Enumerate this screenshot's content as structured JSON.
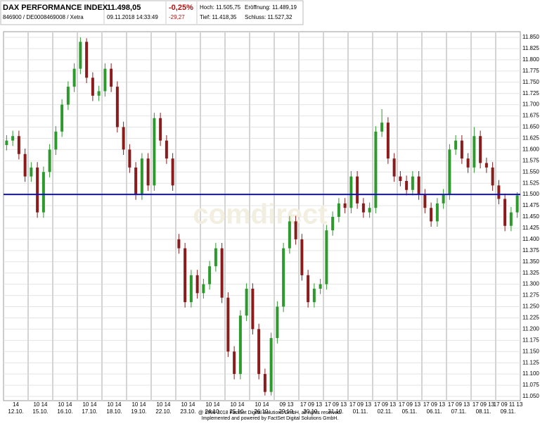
{
  "header": {
    "title": "DAX PERFORMANCE INDEX",
    "price": "11.498,05",
    "change_pct": "-0,25%",
    "high": "Hoch: 11.505,75",
    "open": "Eröffnung: 11.489,19",
    "id": "846900 / DE0008469008 / Xetra",
    "timestamp": "09.11.2018 14:33:49",
    "change_abs": "-29,27",
    "low": "Tief: 11.418,35",
    "close": "Schluss: 11.527,32"
  },
  "chart_data": {
    "type": "candlestick",
    "watermark": "comdirect",
    "up_color": "#2e9a2e",
    "down_color": "#8a1c1c",
    "reference_line": 11500,
    "reference_color": "#1010c0",
    "grid": true,
    "ylim": [
      11050,
      11850
    ],
    "yticks": [
      {
        "value": 11050,
        "label": "11.050"
      },
      {
        "value": 11075,
        "label": "11.075"
      },
      {
        "value": 11100,
        "label": "11.100"
      },
      {
        "value": 11125,
        "label": "11.125"
      },
      {
        "value": 11150,
        "label": "11.150"
      },
      {
        "value": 11175,
        "label": "11.175"
      },
      {
        "value": 11200,
        "label": "11.200"
      },
      {
        "value": 11225,
        "label": "11.225"
      },
      {
        "value": 11250,
        "label": "11.250"
      },
      {
        "value": 11275,
        "label": "11.275"
      },
      {
        "value": 11300,
        "label": "11.300"
      },
      {
        "value": 11325,
        "label": "11.325"
      },
      {
        "value": 11350,
        "label": "11.350"
      },
      {
        "value": 11375,
        "label": "11.375"
      },
      {
        "value": 11400,
        "label": "11.400"
      },
      {
        "value": 11425,
        "label": "11.425"
      },
      {
        "value": 11450,
        "label": "11.450"
      },
      {
        "value": 11475,
        "label": "11.475"
      },
      {
        "value": 11500,
        "label": "11.500"
      },
      {
        "value": 11525,
        "label": "11.525"
      },
      {
        "value": 11550,
        "label": "11.550"
      },
      {
        "value": 11575,
        "label": "11.575"
      },
      {
        "value": 11600,
        "label": "11.600"
      },
      {
        "value": 11625,
        "label": "11.625"
      },
      {
        "value": 11650,
        "label": "11.650"
      },
      {
        "value": 11675,
        "label": "11.675"
      },
      {
        "value": 11700,
        "label": "11.700"
      },
      {
        "value": 11725,
        "label": "11.725"
      },
      {
        "value": 11750,
        "label": "11.750"
      },
      {
        "value": 11775,
        "label": "11.775"
      },
      {
        "value": 11800,
        "label": "11.800"
      },
      {
        "value": 11825,
        "label": "11.825"
      },
      {
        "value": 11850,
        "label": "11.850"
      }
    ],
    "days": [
      "12.10.",
      "15.10.",
      "16.10.",
      "17.10.",
      "18.10.",
      "19.10.",
      "22.10.",
      "23.10.",
      "24.10.",
      "25.10.",
      "26.10.",
      "29.10.",
      "30.10.",
      "31.10.",
      "01.11.",
      "02.11.",
      "05.11.",
      "06.11.",
      "07.11.",
      "08.11.",
      "09.11."
    ],
    "hour_labels": [
      "14",
      "10 14",
      "10 14",
      "10 14",
      "10 14",
      "10 14",
      "10 14",
      "10 14",
      "10 14",
      "10 14",
      "10 14",
      "09 13",
      "17 09 13",
      "17 09 13",
      "17 09 13",
      "17 09 13",
      "17 09 13",
      "17 09 13",
      "17 09 13",
      "17 09 13",
      "17 09 11 13"
    ],
    "candles": [
      [
        11610,
        11632,
        11598,
        11620
      ],
      [
        11620,
        11642,
        11608,
        11630
      ],
      [
        11630,
        11642,
        11578,
        11590
      ],
      [
        11590,
        11602,
        11528,
        11540
      ],
      [
        11540,
        11572,
        11528,
        11560
      ],
      [
        11560,
        11572,
        11448,
        11460
      ],
      [
        11460,
        11562,
        11448,
        11550
      ],
      [
        11550,
        11612,
        11538,
        11600
      ],
      [
        11600,
        11652,
        11588,
        11640
      ],
      [
        11640,
        11712,
        11628,
        11700
      ],
      [
        11700,
        11752,
        11688,
        11740
      ],
      [
        11740,
        11792,
        11728,
        11780
      ],
      [
        11780,
        11850,
        11768,
        11840
      ],
      [
        11840,
        11848,
        11748,
        11760
      ],
      [
        11760,
        11772,
        11708,
        11720
      ],
      [
        11720,
        11742,
        11708,
        11730
      ],
      [
        11730,
        11792,
        11718,
        11780
      ],
      [
        11780,
        11792,
        11728,
        11740
      ],
      [
        11740,
        11752,
        11638,
        11650
      ],
      [
        11650,
        11662,
        11588,
        11600
      ],
      [
        11600,
        11612,
        11548,
        11560
      ],
      [
        11560,
        11572,
        11488,
        11500
      ],
      [
        11500,
        11592,
        11488,
        11580
      ],
      [
        11580,
        11592,
        11508,
        11520
      ],
      [
        11520,
        11682,
        11508,
        11670
      ],
      [
        11670,
        11682,
        11608,
        11620
      ],
      [
        11620,
        11632,
        11568,
        11580
      ],
      [
        11580,
        11592,
        11508,
        11520
      ],
      [
        11400,
        11412,
        11368,
        11380
      ],
      [
        11380,
        11392,
        11248,
        11260
      ],
      [
        11260,
        11332,
        11248,
        11320
      ],
      [
        11320,
        11332,
        11268,
        11280
      ],
      [
        11280,
        11312,
        11268,
        11300
      ],
      [
        11300,
        11352,
        11288,
        11340
      ],
      [
        11340,
        11392,
        11328,
        11380
      ],
      [
        11380,
        11392,
        11258,
        11270
      ],
      [
        11270,
        11282,
        11138,
        11150
      ],
      [
        11150,
        11162,
        11088,
        11100
      ],
      [
        11100,
        11242,
        11088,
        11230
      ],
      [
        11230,
        11302,
        11218,
        11290
      ],
      [
        11290,
        11302,
        11188,
        11200
      ],
      [
        11200,
        11212,
        11088,
        11100
      ],
      [
        11100,
        11112,
        11052,
        11060
      ],
      [
        11060,
        11192,
        11052,
        11180
      ],
      [
        11180,
        11262,
        11168,
        11250
      ],
      [
        11250,
        11392,
        11238,
        11380
      ],
      [
        11380,
        11452,
        11368,
        11440
      ],
      [
        11440,
        11452,
        11388,
        11400
      ],
      [
        11400,
        11412,
        11308,
        11320
      ],
      [
        11320,
        11332,
        11248,
        11260
      ],
      [
        11260,
        11302,
        11248,
        11290
      ],
      [
        11290,
        11312,
        11278,
        11300
      ],
      [
        11300,
        11432,
        11288,
        11420
      ],
      [
        11420,
        11462,
        11408,
        11450
      ],
      [
        11450,
        11492,
        11438,
        11480
      ],
      [
        11480,
        11492,
        11458,
        11470
      ],
      [
        11470,
        11552,
        11458,
        11540
      ],
      [
        11540,
        11552,
        11468,
        11480
      ],
      [
        11480,
        11492,
        11448,
        11460
      ],
      [
        11460,
        11482,
        11448,
        11470
      ],
      [
        11470,
        11652,
        11458,
        11640
      ],
      [
        11640,
        11690,
        11628,
        11660
      ],
      [
        11660,
        11672,
        11568,
        11580
      ],
      [
        11580,
        11592,
        11528,
        11540
      ],
      [
        11540,
        11552,
        11518,
        11530
      ],
      [
        11530,
        11542,
        11498,
        11510
      ],
      [
        11510,
        11552,
        11498,
        11540
      ],
      [
        11540,
        11552,
        11488,
        11500
      ],
      [
        11500,
        11512,
        11458,
        11470
      ],
      [
        11470,
        11482,
        11428,
        11440
      ],
      [
        11440,
        11492,
        11428,
        11480
      ],
      [
        11480,
        11512,
        11468,
        11500
      ],
      [
        11500,
        11612,
        11488,
        11600
      ],
      [
        11600,
        11632,
        11588,
        11620
      ],
      [
        11620,
        11632,
        11568,
        11580
      ],
      [
        11580,
        11592,
        11548,
        11560
      ],
      [
        11560,
        11650,
        11548,
        11630
      ],
      [
        11630,
        11642,
        11558,
        11570
      ],
      [
        11570,
        11582,
        11548,
        11560
      ],
      [
        11560,
        11572,
        11508,
        11520
      ],
      [
        11520,
        11532,
        11478,
        11490
      ],
      [
        11490,
        11502,
        11418,
        11430
      ],
      [
        11430,
        11472,
        11418,
        11460
      ],
      [
        11460,
        11505,
        11448,
        11498
      ]
    ]
  },
  "footer": {
    "line1": "@ 1996-2018 FactSet Digital Solutions GmbH, all rights reserved.",
    "line2": "Implemented and powered by FactSet Digital Solutions GmbH."
  }
}
